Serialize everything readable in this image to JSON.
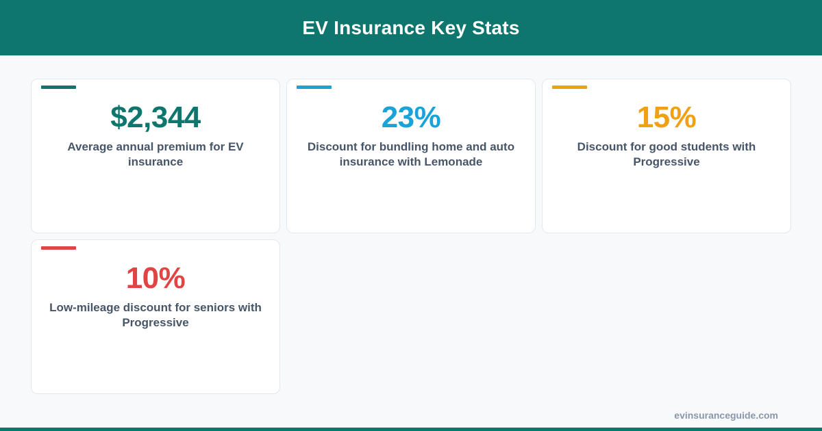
{
  "header": {
    "title": "EV Insurance Key Stats"
  },
  "colors": {
    "brand": "#0f766e",
    "text_muted": "#475569",
    "footer_text": "#8a97a8"
  },
  "cards": [
    {
      "value": "$2,344",
      "description": "Average annual premium for EV insurance",
      "color": "#0f766e"
    },
    {
      "value": "23%",
      "description": "Discount for bundling home and auto insurance with Lemonade",
      "color": "#1aa3d9"
    },
    {
      "value": "15%",
      "description": "Discount for good students with Progressive",
      "color": "#f0a014"
    },
    {
      "value": "10%",
      "description": "Low-mileage discount for seniors with Progressive",
      "color": "#e04444"
    }
  ],
  "footer": {
    "site": "evinsuranceguide.com"
  }
}
